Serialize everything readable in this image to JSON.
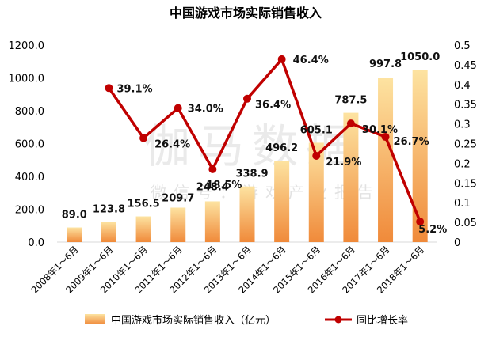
{
  "chart_data": {
    "type": "bar",
    "title": "中国游戏市场实际销售收入",
    "categories": [
      "2008年1～6月",
      "2009年1～6月",
      "2010年1～6月",
      "2011年1～6月",
      "2012年1～6月",
      "2013年1～6月",
      "2014年1～6月",
      "2015年1～6月",
      "2016年1～6月",
      "2017年1～6月",
      "2018年1～6月"
    ],
    "series": [
      {
        "name": "中国游戏市场实际销售收入（亿元）",
        "type": "bar",
        "axis": "left",
        "values": [
          89.0,
          123.8,
          156.5,
          209.7,
          248.4,
          338.9,
          496.2,
          605.1,
          787.5,
          997.8,
          1050.0
        ],
        "labels": [
          "89.0",
          "123.8",
          "156.5",
          "209.7",
          "248.4",
          "338.9",
          "496.2",
          "605.1",
          "787.5",
          "997.8",
          "1050.0"
        ]
      },
      {
        "name": "同比增长率",
        "type": "line",
        "axis": "right",
        "values": [
          null,
          0.391,
          0.264,
          0.34,
          0.185,
          0.364,
          0.464,
          0.219,
          0.301,
          0.267,
          0.052
        ],
        "labels": [
          "",
          "39.1%",
          "26.4%",
          "34.0%",
          "18.5%",
          "36.4%",
          "46.4%",
          "21.9%",
          "30.1%",
          "26.7%",
          "5.2%"
        ]
      }
    ],
    "y_left": {
      "min": 0,
      "max": 1200,
      "ticks": [
        "0.0",
        "200.0",
        "400.0",
        "600.0",
        "800.0",
        "1000.0",
        "1200.0"
      ]
    },
    "y_right": {
      "min": 0,
      "max": 0.5,
      "ticks": [
        "0",
        "0.05",
        "0.1",
        "0.15",
        "0.2",
        "0.25",
        "0.3",
        "0.35",
        "0.4",
        "0.45",
        "0.5"
      ]
    },
    "grid": false,
    "legend": "bottom",
    "colors": {
      "bar_top": "#FDE3A1",
      "bar_bottom": "#F08A3A",
      "line": "#C00000"
    },
    "watermark": {
      "main": "伽马数据",
      "sub": "微信号：游戏产业报告"
    }
  }
}
